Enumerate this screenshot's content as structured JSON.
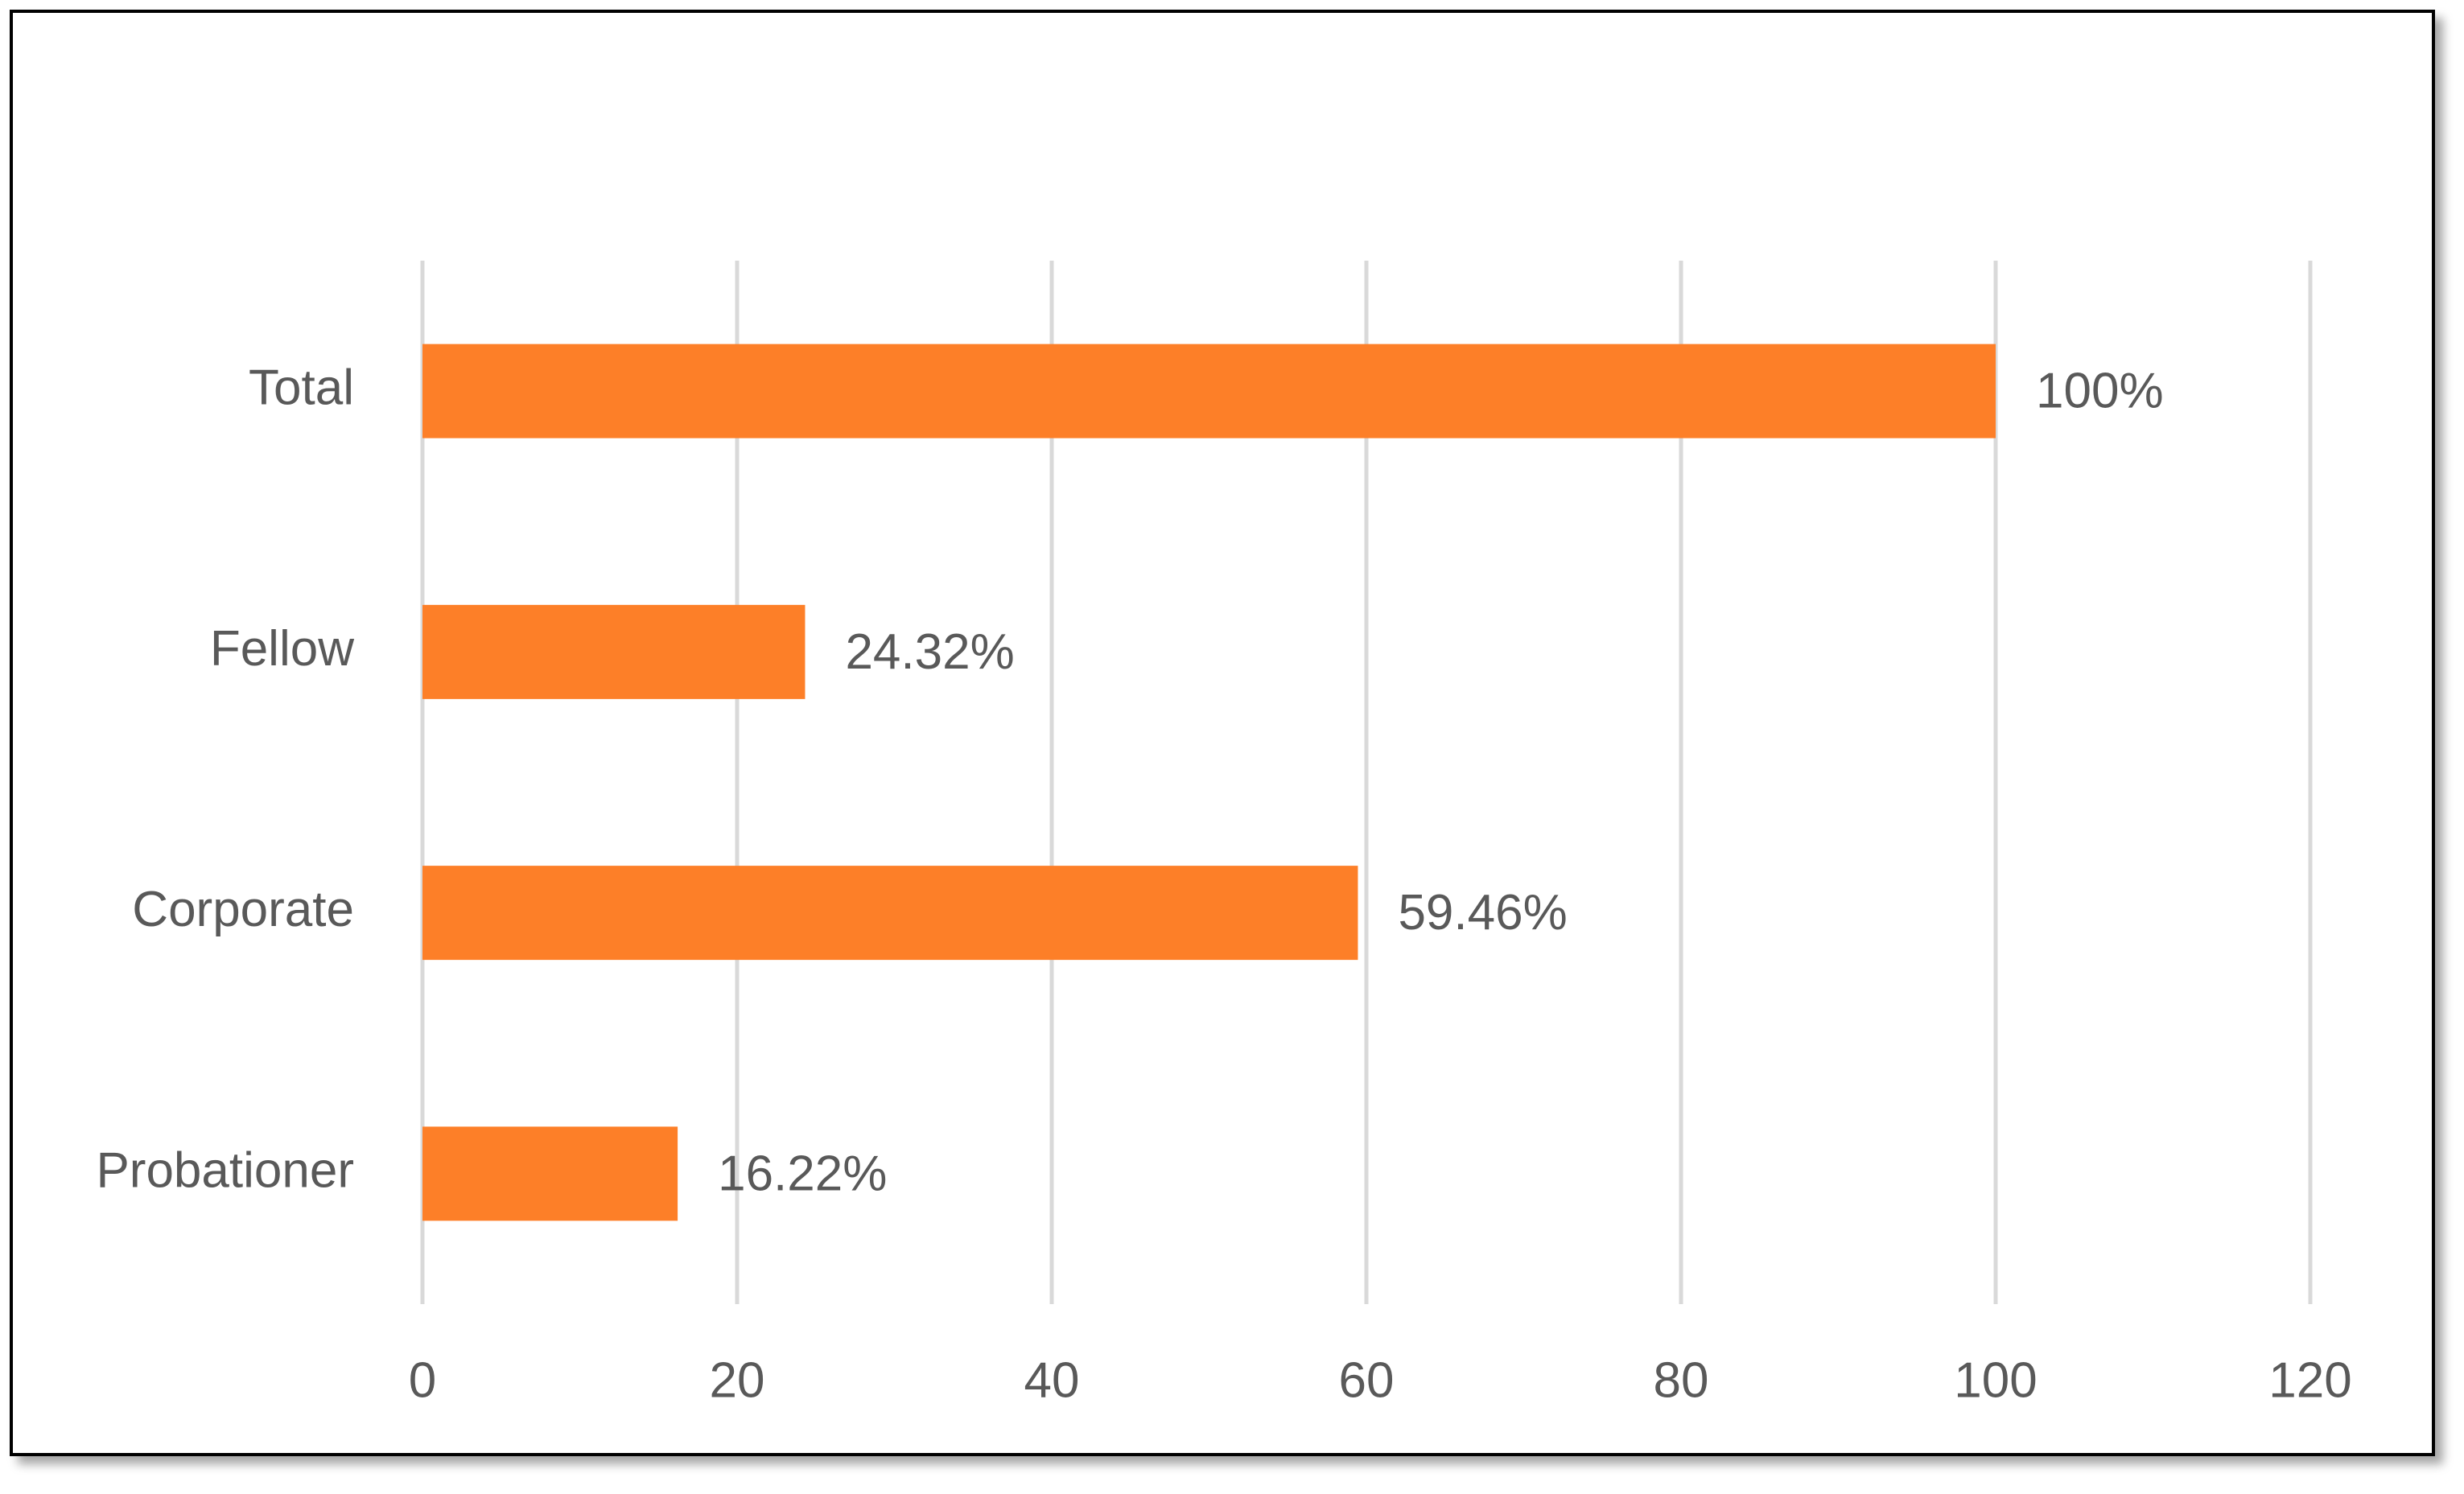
{
  "chart_data": {
    "type": "bar",
    "orientation": "horizontal",
    "categories": [
      "Total",
      "Fellow",
      "Corporate",
      "Probationer"
    ],
    "values": [
      100,
      24.32,
      59.46,
      16.22
    ],
    "value_labels": [
      "100%",
      "24.32%",
      "59.46%",
      "16.22%"
    ],
    "color": "#fd7f28",
    "xlim": [
      0,
      120
    ],
    "xticks": [
      0,
      20,
      40,
      60,
      80,
      100,
      120
    ],
    "grid": true
  }
}
